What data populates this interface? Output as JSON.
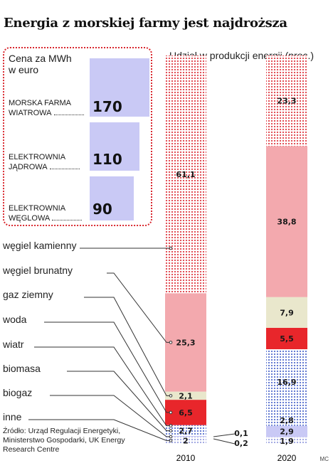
{
  "title": "Energia z morskiej farmy jest najdroższa",
  "price_box": {
    "heading": "Cena za MWh w euro",
    "items": [
      {
        "label": "MORSKA FARMA WIATROWA",
        "value": 170
      },
      {
        "label": "ELEKTROWNIA JĄDROWA",
        "value": 110
      },
      {
        "label": "ELEKTROWNIA WĘGLOWA",
        "value": 90
      }
    ]
  },
  "chart_data": {
    "type": "bar",
    "stacked": true,
    "title": "Udział w produkcji energii (proc.)",
    "categories": [
      "2010",
      "2020"
    ],
    "series": [
      {
        "name": "inne",
        "values": [
          2,
          1.9
        ],
        "color": "#b9bde8",
        "pattern": "dots-light"
      },
      {
        "name": "biogaz",
        "values": [
          0.2,
          2.9
        ],
        "color": "#c9c9f5",
        "pattern": "solid"
      },
      {
        "name": "biomasa",
        "values": [
          2.7,
          2.8
        ],
        "color": "#8f8ff0",
        "pattern": "dots-blue"
      },
      {
        "name": "wiatr",
        "values": [
          0.1,
          16.9
        ],
        "color": "#6f86d6",
        "pattern": "dots-blue"
      },
      {
        "name": "woda",
        "values": [
          6.5,
          5.5
        ],
        "color": "#e8262b",
        "pattern": "solid"
      },
      {
        "name": "gaz ziemny",
        "values": [
          2.1,
          7.9
        ],
        "color": "#e9e7cc",
        "pattern": "solid"
      },
      {
        "name": "węgiel brunatny",
        "values": [
          25.3,
          38.8
        ],
        "color": "#f3a9ae",
        "pattern": "solid"
      },
      {
        "name": "węgiel kamienny",
        "values": [
          61.1,
          23.3
        ],
        "color": "#e0454d",
        "pattern": "dots-red"
      }
    ],
    "labels": {
      "2010": [
        "2",
        "0,2",
        "2,7",
        "0,1",
        "6,5",
        "2,1",
        "25,3",
        "61,1"
      ],
      "2020": [
        "1,9",
        "2,9",
        "2,8",
        "16,9",
        "5,5",
        "7,9",
        "38,8",
        "23,3"
      ]
    }
  },
  "source": "Źródło: Urząd Regulacji Energetyki, Ministerstwo Gospodarki, UK Energy Research Centre",
  "author": "MC"
}
